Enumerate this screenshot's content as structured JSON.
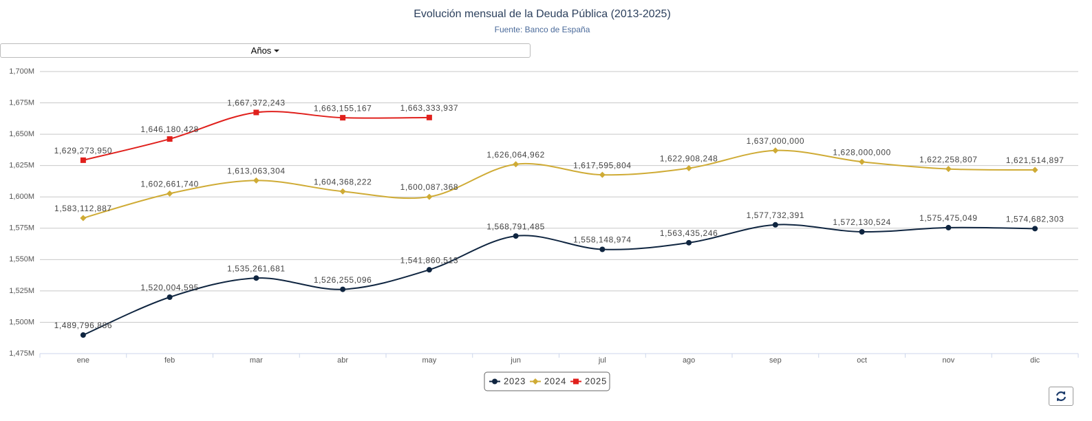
{
  "ui": {
    "dropdown": "Años"
  },
  "chart_data": {
    "type": "line",
    "title": "Evolución mensual de la Deuda Pública (2013-2025)",
    "subtitle": "Fuente: Banco de España",
    "categories": [
      "ene",
      "feb",
      "mar",
      "abr",
      "may",
      "jun",
      "jul",
      "ago",
      "sep",
      "oct",
      "nov",
      "dic"
    ],
    "ylim": [
      1475000000,
      1700000000
    ],
    "yticks": [
      {
        "value": 1475000000,
        "label": "1,475M"
      },
      {
        "value": 1500000000,
        "label": "1,500M"
      },
      {
        "value": 1525000000,
        "label": "1,525M"
      },
      {
        "value": 1550000000,
        "label": "1,550M"
      },
      {
        "value": 1575000000,
        "label": "1,575M"
      },
      {
        "value": 1600000000,
        "label": "1,600M"
      },
      {
        "value": 1625000000,
        "label": "1,625M"
      },
      {
        "value": 1650000000,
        "label": "1,650M"
      },
      {
        "value": 1675000000,
        "label": "1,675M"
      },
      {
        "value": 1700000000,
        "label": "1,700M"
      }
    ],
    "grid": true,
    "legend": "bottom",
    "series": [
      {
        "name": "2023",
        "color": "#0f2540",
        "marker": "circle",
        "values": [
          1489796886,
          1520004595,
          1535261681,
          1526255096,
          1541860513,
          1568791485,
          1558148974,
          1563435246,
          1577732391,
          1572130524,
          1575475049,
          1574682303
        ],
        "value_labels": [
          "1,489,796,886",
          "1,520,004,595",
          "1,535,261,681",
          "1,526,255,096",
          "1,541,860,513",
          "1,568,791,485",
          "1,558,148,974",
          "1,563,435,246",
          "1,577,732,391",
          "1,572,130,524",
          "1,575,475,049",
          "1,574,682,303"
        ]
      },
      {
        "name": "2024",
        "color": "#cfab35",
        "marker": "diamond",
        "values": [
          1583112887,
          1602661740,
          1613063304,
          1604368222,
          1600087368,
          1626064962,
          1617595804,
          1622908248,
          1637000000,
          1628000000,
          1622258807,
          1621514897
        ],
        "value_labels": [
          "1,583,112,887",
          "1,602,661,740",
          "1,613,063,304",
          "1,604,368,222",
          "1,600,087,368",
          "1,626,064,962",
          "1,617,595,804",
          "1,622,908,248",
          "1,637,000,000",
          "1,628,000,000",
          "1,622,258,807",
          "1,621,514,897"
        ]
      },
      {
        "name": "2025",
        "color": "#e0201c",
        "marker": "square",
        "values": [
          1629273950,
          1646180428,
          1667372243,
          1663155167,
          1663333937,
          null,
          null,
          null,
          null,
          null,
          null,
          null
        ],
        "value_labels": [
          "1,629,273,950",
          "1,646,180,428",
          "1,667,372,243",
          "1,663,155,167",
          "1,663,333,937",
          null,
          null,
          null,
          null,
          null,
          null,
          null
        ]
      }
    ]
  }
}
